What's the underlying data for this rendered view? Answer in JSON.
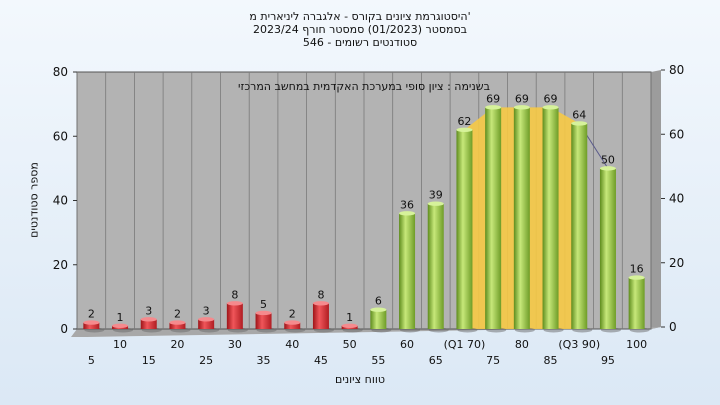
{
  "titles": [
    "היסטוגרמת ציונים בקורס - אלגברה ליניארית מ'",
    "בסמסטר (01/2023) סמסטר חורף 2023/24",
    "סטודנטים רשומים - 546"
  ],
  "chart_data": {
    "type": "bar",
    "title": "היסטוגרמת ציונים בקורס - אלגברה ליניארית מ'",
    "subtitle": [
      "בסמסטר (01/2023) סמסטר חורף 2023/24",
      "סטודנטים רשומים - 546"
    ],
    "annotation": "בשנימה : ציון סופי במערכת האקדמית במחשב המרכזי",
    "xlabel": "טווח ציונים",
    "ylabel": "מספר סטודנטים",
    "ylim": [
      0,
      80
    ],
    "yticks": [
      0,
      20,
      40,
      60,
      80
    ],
    "grid": "vertical",
    "categories": [
      "5",
      "10",
      "15",
      "20",
      "25",
      "30",
      "35",
      "40",
      "45",
      "50",
      "55",
      "60",
      "65",
      "Q1 70",
      "75",
      "80",
      "85",
      "Q3 90",
      "95",
      "100"
    ],
    "tick_labels": [
      "5",
      "10",
      "15",
      "20",
      "25",
      "30",
      "35",
      "40",
      "45",
      "50",
      "55",
      "60",
      "65",
      "(Q1 70)",
      "75",
      "80",
      "85",
      "(Q3 90)",
      "95",
      "100"
    ],
    "values": [
      2,
      1,
      3,
      2,
      3,
      8,
      5,
      2,
      8,
      1,
      6,
      36,
      39,
      62,
      69,
      69,
      69,
      64,
      50,
      16
    ],
    "value_labels": [
      "2",
      "1",
      "3",
      "2",
      "3",
      "8",
      "5",
      "2",
      "8",
      "1",
      "6",
      "36",
      "39",
      "62",
      "69",
      "69",
      "69",
      "64",
      "50",
      "16"
    ],
    "colors": {
      "fail": "#d8262b",
      "pass": "#8cbf3f",
      "band": "#f6c945",
      "plot_bg": "#b3b3b3"
    },
    "band_range": [
      "Q1 70",
      "Q3 90"
    ]
  }
}
